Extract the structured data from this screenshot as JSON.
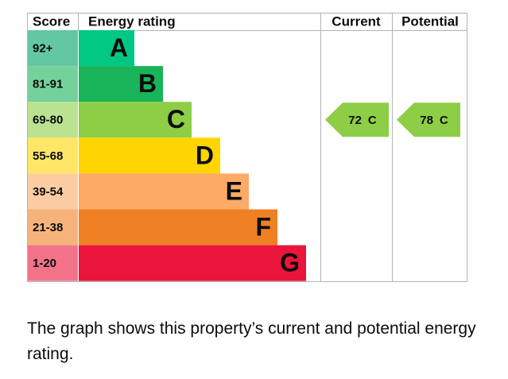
{
  "header": {
    "score": "Score",
    "rating": "Energy rating",
    "current": "Current",
    "potential": "Potential"
  },
  "bands": [
    {
      "score": "92+",
      "letter": "A",
      "bar_color": "#00c781",
      "score_color": "#64c7a3"
    },
    {
      "score": "81-91",
      "letter": "B",
      "bar_color": "#19b459",
      "score_color": "#75d19b"
    },
    {
      "score": "69-80",
      "letter": "C",
      "bar_color": "#8dce46",
      "score_color": "#bbe290"
    },
    {
      "score": "55-68",
      "letter": "D",
      "bar_color": "#ffd500",
      "score_color": "#ffe666"
    },
    {
      "score": "39-54",
      "letter": "E",
      "bar_color": "#fcaa65",
      "score_color": "#fdcca3"
    },
    {
      "score": "21-38",
      "letter": "F",
      "bar_color": "#ef8023",
      "score_color": "#f5b37b"
    },
    {
      "score": "1-20",
      "letter": "G",
      "bar_color": "#e9153b",
      "score_color": "#f27389"
    }
  ],
  "current": {
    "score": 72,
    "band": "C"
  },
  "potential": {
    "score": 78,
    "band": "C"
  },
  "caption": "The graph shows this property’s current and potential energy rating."
}
